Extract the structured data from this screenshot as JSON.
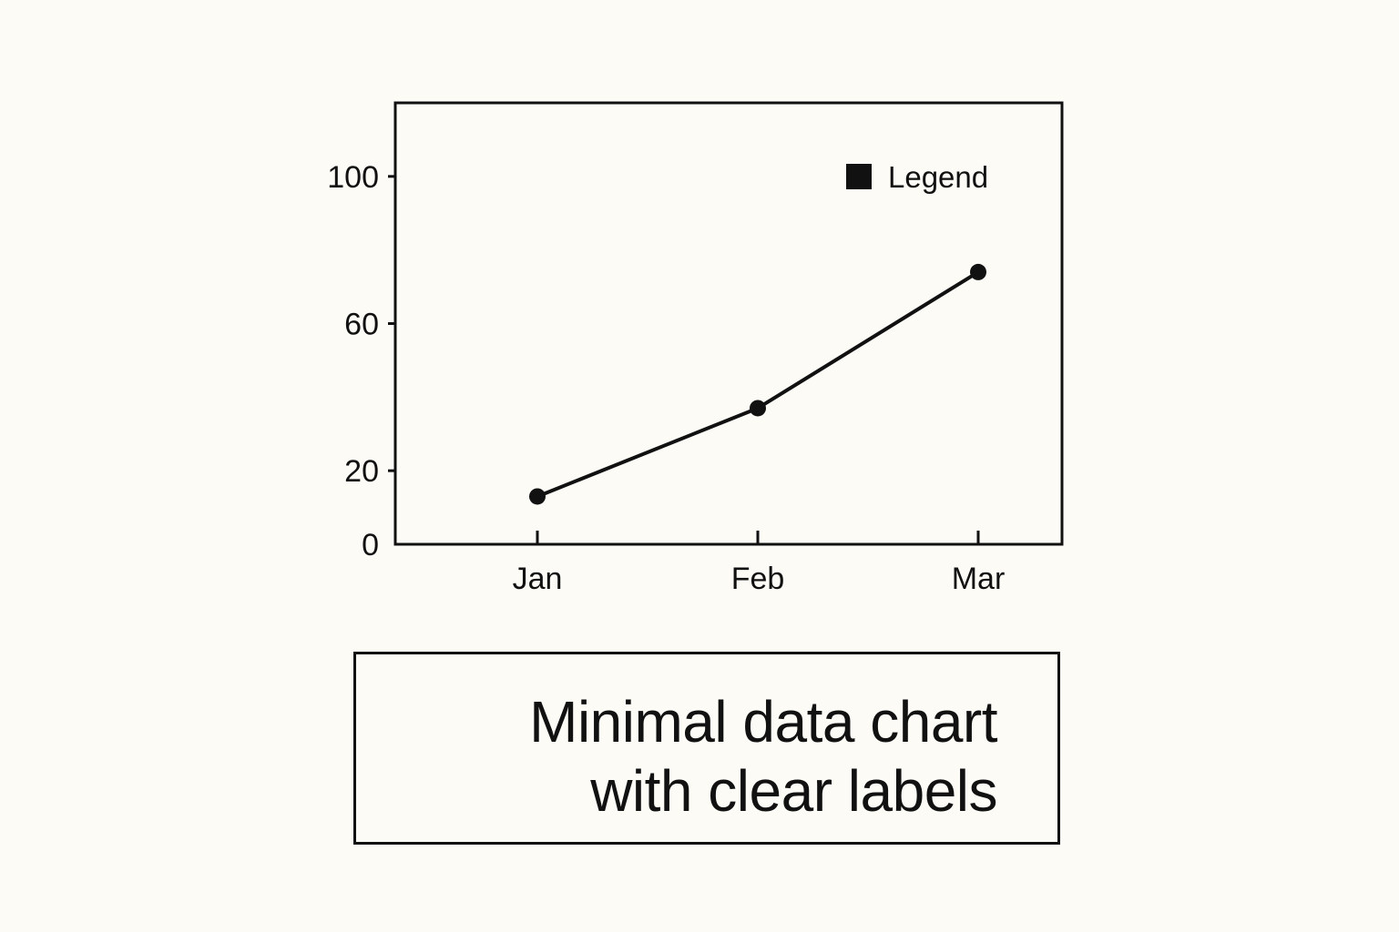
{
  "chart_data": {
    "type": "line",
    "categories": [
      "Jan",
      "Feb",
      "Mar"
    ],
    "series": [
      {
        "name": "Legend",
        "values": [
          13,
          37,
          74
        ]
      }
    ],
    "y_ticks": [
      0,
      20,
      60,
      100
    ],
    "y_tick_labels": [
      "0",
      "20",
      "60",
      "100"
    ],
    "ylim": [
      0,
      120
    ],
    "grid": false,
    "legend_position": "top-right",
    "line_color": "#111111"
  },
  "caption": {
    "line1": "Minimal data chart",
    "line2": "with clear labels"
  }
}
